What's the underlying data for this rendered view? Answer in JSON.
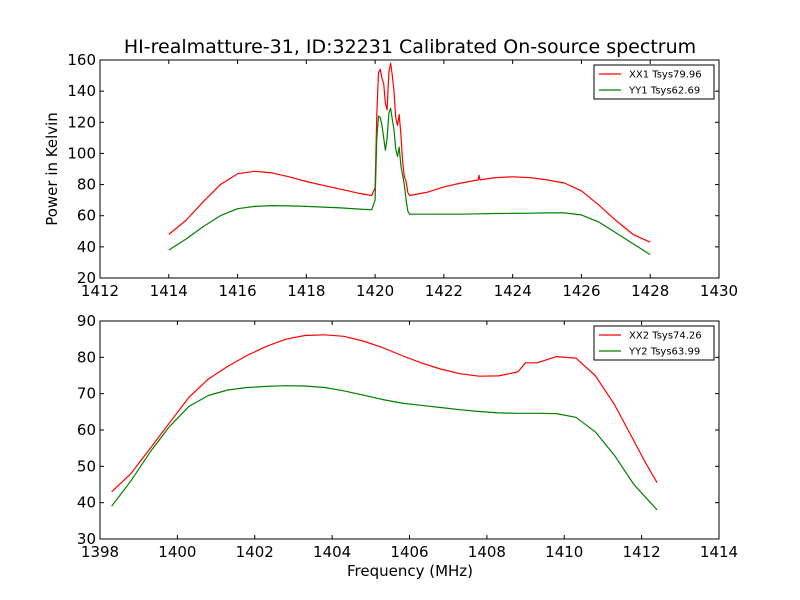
{
  "window_title": "HI-realmatture-31, ID:32231 Calibrated On-source spectrum",
  "colors": {
    "red": "#ff0000",
    "green": "#008000"
  },
  "chart_data": [
    {
      "type": "line",
      "title": "HI-realmatture-31, ID:32231 Calibrated On-source spectrum",
      "xlabel": "",
      "ylabel": "Power in Kelvin",
      "xlim": [
        1412,
        1430
      ],
      "ylim": [
        20,
        160
      ],
      "xticks": [
        1412,
        1414,
        1416,
        1418,
        1420,
        1422,
        1424,
        1426,
        1428,
        1430
      ],
      "yticks": [
        20,
        40,
        60,
        80,
        100,
        120,
        140,
        160
      ],
      "grid": false,
      "legend": "top-right",
      "series": [
        {
          "name": "XX1 Tsys79.96",
          "color": "#ff0000",
          "x": [
            1414.0,
            1414.5,
            1415.0,
            1415.5,
            1416.0,
            1416.5,
            1417.0,
            1417.5,
            1418.0,
            1418.5,
            1419.0,
            1419.5,
            1419.9,
            1420.0,
            1420.05,
            1420.1,
            1420.15,
            1420.2,
            1420.25,
            1420.3,
            1420.35,
            1420.4,
            1420.45,
            1420.5,
            1420.55,
            1420.6,
            1420.65,
            1420.7,
            1420.75,
            1420.8,
            1420.85,
            1420.9,
            1420.95,
            1421.0,
            1421.5,
            1422.0,
            1422.5,
            1423.0,
            1423.02,
            1423.05,
            1423.5,
            1424.0,
            1424.5,
            1425.0,
            1425.5,
            1426.0,
            1426.5,
            1427.0,
            1427.5,
            1428.0
          ],
          "y": [
            48,
            57,
            69,
            80,
            87,
            88.5,
            87.5,
            85,
            82,
            79.5,
            77,
            74.5,
            73,
            78,
            125,
            152,
            154,
            148,
            145,
            132,
            128,
            152,
            158,
            150,
            140,
            123,
            118,
            125,
            112,
            95,
            85,
            82,
            75,
            73,
            75,
            78.5,
            81,
            83,
            86,
            83,
            84.5,
            85,
            84.5,
            83,
            81,
            76,
            67,
            57,
            48,
            43
          ]
        },
        {
          "name": "YY1 Tsys62.69",
          "color": "#008000",
          "x": [
            1414.0,
            1414.5,
            1415.0,
            1415.5,
            1416.0,
            1416.5,
            1417.0,
            1417.5,
            1418.0,
            1418.5,
            1419.0,
            1419.5,
            1419.9,
            1420.0,
            1420.05,
            1420.1,
            1420.15,
            1420.2,
            1420.25,
            1420.3,
            1420.35,
            1420.4,
            1420.45,
            1420.5,
            1420.55,
            1420.6,
            1420.65,
            1420.7,
            1420.75,
            1420.8,
            1420.85,
            1420.9,
            1420.95,
            1421.0,
            1421.5,
            1422.0,
            1422.5,
            1423.0,
            1423.5,
            1424.0,
            1424.5,
            1425.0,
            1425.5,
            1426.0,
            1426.5,
            1427.0,
            1427.5,
            1428.0
          ],
          "y": [
            38,
            45,
            53,
            60,
            64.5,
            66,
            66.5,
            66.3,
            66,
            65.5,
            65,
            64.3,
            63.8,
            70,
            110,
            124,
            123,
            118,
            110,
            102,
            110,
            126,
            129,
            122,
            115,
            103,
            98,
            104,
            92,
            86,
            80,
            70,
            63,
            61,
            61,
            61,
            61,
            61.2,
            61.4,
            61.5,
            61.6,
            61.8,
            61.8,
            60.5,
            56,
            49,
            42,
            35
          ]
        }
      ]
    },
    {
      "type": "line",
      "title": "",
      "xlabel": "Frequency (MHz)",
      "ylabel": "",
      "xlim": [
        1398,
        1414
      ],
      "ylim": [
        30,
        90
      ],
      "xticks": [
        1398,
        1400,
        1402,
        1404,
        1406,
        1408,
        1410,
        1412,
        1414
      ],
      "yticks": [
        30,
        40,
        50,
        60,
        70,
        80,
        90
      ],
      "grid": false,
      "legend": "top-right",
      "series": [
        {
          "name": "XX2 Tsys74.26",
          "color": "#ff0000",
          "x": [
            1398.3,
            1398.8,
            1399.3,
            1399.8,
            1400.3,
            1400.8,
            1401.3,
            1401.8,
            1402.3,
            1402.8,
            1403.3,
            1403.8,
            1404.3,
            1404.8,
            1405.3,
            1405.8,
            1406.3,
            1406.8,
            1407.3,
            1407.8,
            1408.3,
            1408.8,
            1409.0,
            1409.3,
            1409.8,
            1410.3,
            1410.8,
            1411.3,
            1411.8,
            1412.1,
            1412.4
          ],
          "y": [
            43,
            48,
            55,
            62,
            69,
            74,
            77.5,
            80.5,
            83,
            85,
            86,
            86.2,
            85.8,
            84.5,
            82.7,
            80.5,
            78.5,
            76.8,
            75.5,
            74.8,
            74.9,
            76,
            78.5,
            78.5,
            80.2,
            79.8,
            75,
            67,
            57,
            51,
            45.5
          ]
        },
        {
          "name": "YY2 Tsys63.99",
          "color": "#008000",
          "x": [
            1398.3,
            1398.8,
            1399.3,
            1399.8,
            1400.3,
            1400.8,
            1401.3,
            1401.8,
            1402.3,
            1402.8,
            1403.3,
            1403.8,
            1404.3,
            1404.8,
            1405.3,
            1405.8,
            1406.3,
            1406.8,
            1407.3,
            1407.8,
            1408.3,
            1408.8,
            1409.3,
            1409.8,
            1410.3,
            1410.8,
            1411.3,
            1411.8,
            1412.1,
            1412.4
          ],
          "y": [
            39,
            46,
            54,
            61,
            66.5,
            69.5,
            71,
            71.7,
            72,
            72.2,
            72.1,
            71.7,
            70.8,
            69.6,
            68.4,
            67.4,
            66.8,
            66.2,
            65.6,
            65.1,
            64.7,
            64.6,
            64.6,
            64.5,
            63.5,
            59.5,
            53,
            45,
            41.5,
            38
          ]
        }
      ]
    }
  ]
}
